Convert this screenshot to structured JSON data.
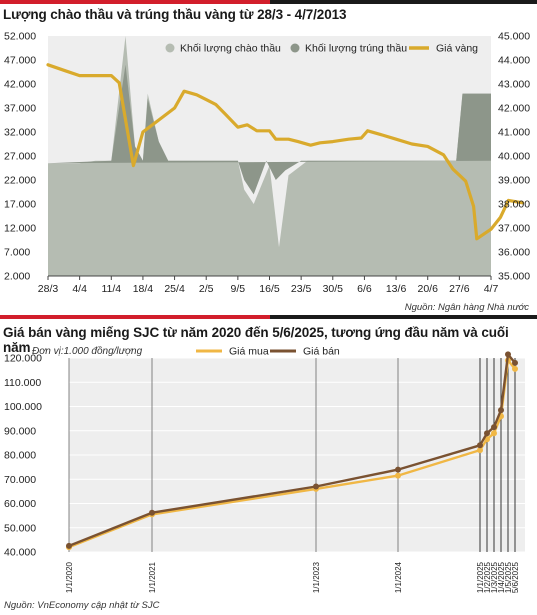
{
  "colors": {
    "accent_red": "#d21e2b",
    "panel_bg": "#eeeeee",
    "offer_volume": "#b5bcb2",
    "winning_volume": "#8d968a",
    "gold_price": "#d9aa2c",
    "buy_price": "#f0b745",
    "sell_price": "#7a5231"
  },
  "chart_data": [
    {
      "type": "area",
      "title": "Lượng chào thầu và trúng thầu vàng từ 28/3 - 4/7/2013",
      "source": "Nguồn: Ngân hàng Nhà nước",
      "categories": [
        "28/3",
        "4/4",
        "11/4",
        "18/4",
        "25/4",
        "2/5",
        "9/5",
        "16/5",
        "23/5",
        "30/5",
        "6/6",
        "13/6",
        "20/6",
        "27/6",
        "4/7"
      ],
      "left_axis": {
        "ticks": [
          "52.000",
          "47.000",
          "42.000",
          "37.000",
          "32.000",
          "27.000",
          "22.000",
          "17.000",
          "12.000",
          "7.000",
          "2.000"
        ],
        "range": [
          2000,
          52000
        ]
      },
      "right_axis": {
        "ticks": [
          "45.000",
          "44.000",
          "43.000",
          "42.000",
          "41.000",
          "40.000",
          "39.000",
          "38.000",
          "37.000",
          "36.000",
          "35.000"
        ],
        "range": [
          35000,
          45000
        ]
      },
      "legend": [
        "Khối lượng chào thầu",
        "Khối lượng trúng thầu",
        "Giá vàng"
      ],
      "legend_position": "top-right",
      "series": [
        {
          "name": "Khối lượng chào thầu",
          "kind": "area",
          "axis": "left",
          "points": [
            [
              0,
              2000
            ],
            [
              0,
              25500
            ],
            [
              1.0,
              25500
            ],
            [
              1.5,
              26000
            ],
            [
              2.0,
              26000
            ],
            [
              2.45,
              52000
            ],
            [
              2.75,
              29000
            ],
            [
              3.0,
              26000
            ],
            [
              3.15,
              40000
            ],
            [
              3.5,
              30000
            ],
            [
              3.8,
              26000
            ],
            [
              5.0,
              26000
            ],
            [
              6.0,
              26000
            ],
            [
              6.2,
              20000
            ],
            [
              6.5,
              17000
            ],
            [
              7.0,
              25000
            ],
            [
              7.3,
              8000
            ],
            [
              7.6,
              23000
            ],
            [
              8.2,
              26000
            ],
            [
              9.0,
              26000
            ],
            [
              10.0,
              26000
            ],
            [
              11.0,
              26000
            ],
            [
              12.0,
              26000
            ],
            [
              12.9,
              26000
            ],
            [
              13.1,
              40000
            ],
            [
              14.0,
              40000
            ],
            [
              14.0,
              2000
            ]
          ]
        },
        {
          "name": "Khối lượng trúng thầu",
          "kind": "area",
          "axis": "left",
          "points": [
            [
              0,
              25500
            ],
            [
              2.0,
              26000
            ],
            [
              2.45,
              46000
            ],
            [
              2.75,
              29000
            ],
            [
              3.0,
              26000
            ],
            [
              3.15,
              39000
            ],
            [
              3.5,
              30000
            ],
            [
              3.8,
              26000
            ],
            [
              6.0,
              26000
            ],
            [
              6.2,
              22000
            ],
            [
              6.5,
              19000
            ],
            [
              6.9,
              26000
            ],
            [
              7.2,
              22000
            ],
            [
              7.5,
              24000
            ],
            [
              8.0,
              26000
            ],
            [
              12.9,
              26000
            ],
            [
              13.1,
              40000
            ],
            [
              14.0,
              40000
            ],
            [
              14.0,
              26000
            ]
          ]
        },
        {
          "name": "Giá vàng",
          "kind": "line",
          "axis": "right",
          "points": [
            [
              0,
              43.8
            ],
            [
              0.55,
              43.55
            ],
            [
              1.0,
              43.35
            ],
            [
              1.5,
              43.35
            ],
            [
              2.0,
              43.35
            ],
            [
              2.25,
              43.05
            ],
            [
              2.7,
              39.6
            ],
            [
              3.0,
              41.0
            ],
            [
              3.5,
              41.5
            ],
            [
              4.0,
              42.0
            ],
            [
              4.3,
              42.7
            ],
            [
              4.7,
              42.55
            ],
            [
              5.0,
              42.35
            ],
            [
              5.3,
              42.15
            ],
            [
              5.6,
              41.75
            ],
            [
              6.0,
              41.2
            ],
            [
              6.3,
              41.3
            ],
            [
              6.6,
              41.05
            ],
            [
              7.0,
              41.05
            ],
            [
              7.2,
              40.7
            ],
            [
              7.6,
              40.7
            ],
            [
              7.9,
              40.6
            ],
            [
              8.3,
              40.45
            ],
            [
              8.6,
              40.55
            ],
            [
              9.0,
              40.6
            ],
            [
              9.5,
              40.7
            ],
            [
              9.9,
              40.75
            ],
            [
              10.1,
              41.05
            ],
            [
              10.5,
              40.9
            ],
            [
              11.0,
              40.7
            ],
            [
              11.5,
              40.5
            ],
            [
              12.0,
              40.4
            ],
            [
              12.5,
              40.05
            ],
            [
              12.8,
              39.45
            ],
            [
              13.0,
              39.2
            ],
            [
              13.2,
              38.95
            ],
            [
              13.45,
              37.9
            ],
            [
              13.55,
              36.55
            ],
            [
              14.0,
              36.95
            ],
            [
              14.3,
              37.45
            ],
            [
              14.55,
              38.15
            ],
            [
              15.0,
              38.05
            ]
          ]
        }
      ]
    },
    {
      "type": "line",
      "title": "Giá bán vàng miếng SJC từ năm 2020 đến 5/6/2025, tương ứng đầu năm và cuối năm",
      "unit_note": "Đơn vị:1.000 đồng/lượng",
      "source": "Nguồn: VnEconomy cập nhật từ SJC",
      "x_labels": [
        "1/1/2020",
        "1/1/2021",
        "1/1/2023",
        "1/1/2024",
        "1/1/2025",
        "1/2/2025",
        "1/3/2025",
        "1/4/2025",
        "1/5/2025",
        "5/6/2025"
      ],
      "y_ticks": [
        "120.000",
        "110.000",
        "100.000",
        "90.000",
        "80.000",
        "70.000",
        "60.000",
        "50.000",
        "40.000"
      ],
      "ylim": [
        40000,
        120000
      ],
      "grid": true,
      "legend": [
        "Giá mua",
        "Giá bán"
      ],
      "legend_position": "top-left",
      "series": [
        {
          "name": "Giá mua",
          "values": [
            42000,
            55500,
            66000,
            71500,
            82000,
            86500,
            89000,
            96000,
            119000,
            115500
          ]
        },
        {
          "name": "Giá bán",
          "values": [
            42500,
            56200,
            67000,
            74000,
            84000,
            89000,
            91500,
            98500,
            121500,
            118000
          ]
        }
      ]
    }
  ]
}
